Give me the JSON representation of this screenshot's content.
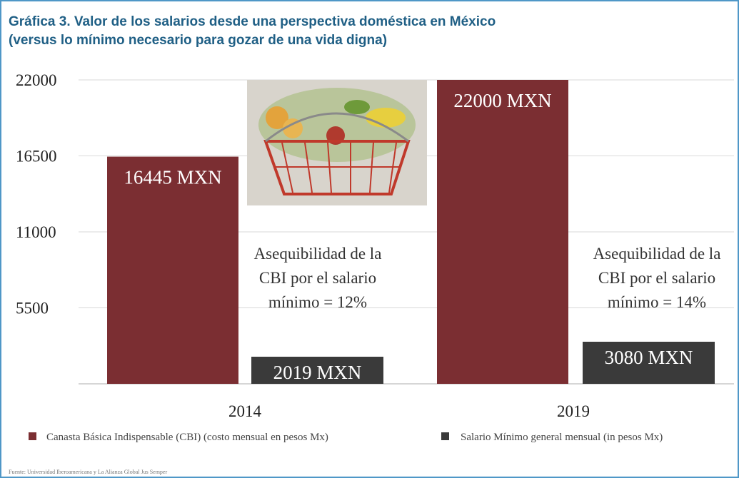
{
  "title_line1": "Gráfica 3. Valor de los salarios desde una perspectiva doméstica en México",
  "title_line2": "(versus lo mínimo necesario para gozar de una vida digna)",
  "source": "Fuente: Universidad Iberoamericana y La Alianza Global Jus Semper",
  "chart_data": {
    "type": "bar",
    "categories": [
      "2014",
      "2019"
    ],
    "series": [
      {
        "name": "Canasta Básica Indispensable (CBI) (costo mensual en pesos Mx)",
        "values": [
          16445,
          22000
        ],
        "labels": [
          "16445 MXN",
          "22000 MXN"
        ],
        "color": "#7b2e32"
      },
      {
        "name": "Salario Mínimo general mensual (in pesos Mx)",
        "values": [
          2019,
          3080
        ],
        "labels": [
          "2019 MXN",
          "3080 MXN"
        ],
        "color": "#3a3a3a"
      }
    ],
    "yticks": [
      5500,
      11000,
      16500,
      22000
    ],
    "ylim": [
      0,
      22000
    ],
    "annotations": [
      {
        "category": "2014",
        "lines": [
          "Asequibilidad de la",
          "CBI por el salario",
          "mínimo =  12%"
        ]
      },
      {
        "category": "2019",
        "lines": [
          "Asequibilidad de la",
          "CBI por el salario",
          "mínimo =  14%"
        ]
      }
    ],
    "legend": "bottom",
    "grid": true
  }
}
